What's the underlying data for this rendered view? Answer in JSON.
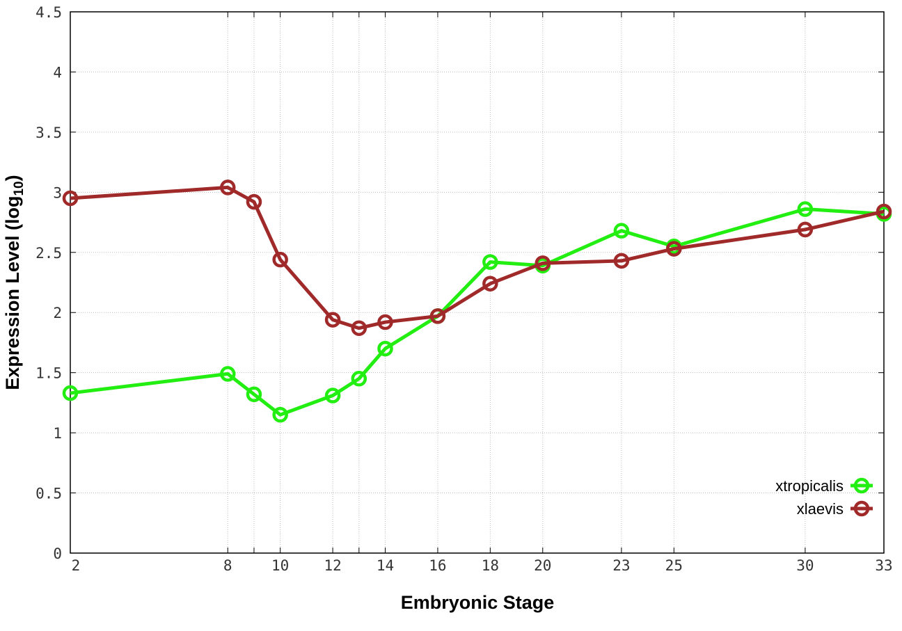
{
  "chart_data": {
    "type": "line",
    "xlabel": "Embryonic Stage",
    "ylabel": "Expression Level (log",
    "ylabel_sub": "10",
    "ylabel_close": ")",
    "x": [
      2,
      8,
      9,
      10,
      12,
      13,
      14,
      16,
      18,
      20,
      23,
      25,
      30,
      33
    ],
    "x_tick_labels": [
      "2",
      "8",
      "9",
      "10",
      "12",
      "13",
      "14",
      "16",
      "18",
      "20",
      "23",
      "25",
      "30",
      "33"
    ],
    "x_visible_tick_labels": [
      "2",
      "8",
      "10",
      "12",
      "14",
      "16",
      "18",
      "20",
      "23",
      "25",
      "30",
      "33"
    ],
    "xlim": [
      2,
      33
    ],
    "ylim": [
      0,
      4.5
    ],
    "y_ticks": [
      0,
      0.5,
      1,
      1.5,
      2,
      2.5,
      3,
      3.5,
      4,
      4.5
    ],
    "y_tick_labels": [
      "0",
      "0.5",
      "1",
      "1.5",
      "2",
      "2.5",
      "3",
      "3.5",
      "4",
      "4.5"
    ],
    "grid": true,
    "legend_position": "bottom-right",
    "series": [
      {
        "name": "xtropicalis",
        "color": "#22ee11",
        "values": [
          1.33,
          1.49,
          1.32,
          1.15,
          1.31,
          1.45,
          1.7,
          1.97,
          2.42,
          2.39,
          2.68,
          2.55,
          2.86,
          2.82
        ]
      },
      {
        "name": "xlaevis",
        "color": "#a0292a",
        "values": [
          2.95,
          3.04,
          2.92,
          2.44,
          1.94,
          1.87,
          1.92,
          1.97,
          2.24,
          2.41,
          2.43,
          2.53,
          2.69,
          2.84
        ]
      }
    ]
  }
}
